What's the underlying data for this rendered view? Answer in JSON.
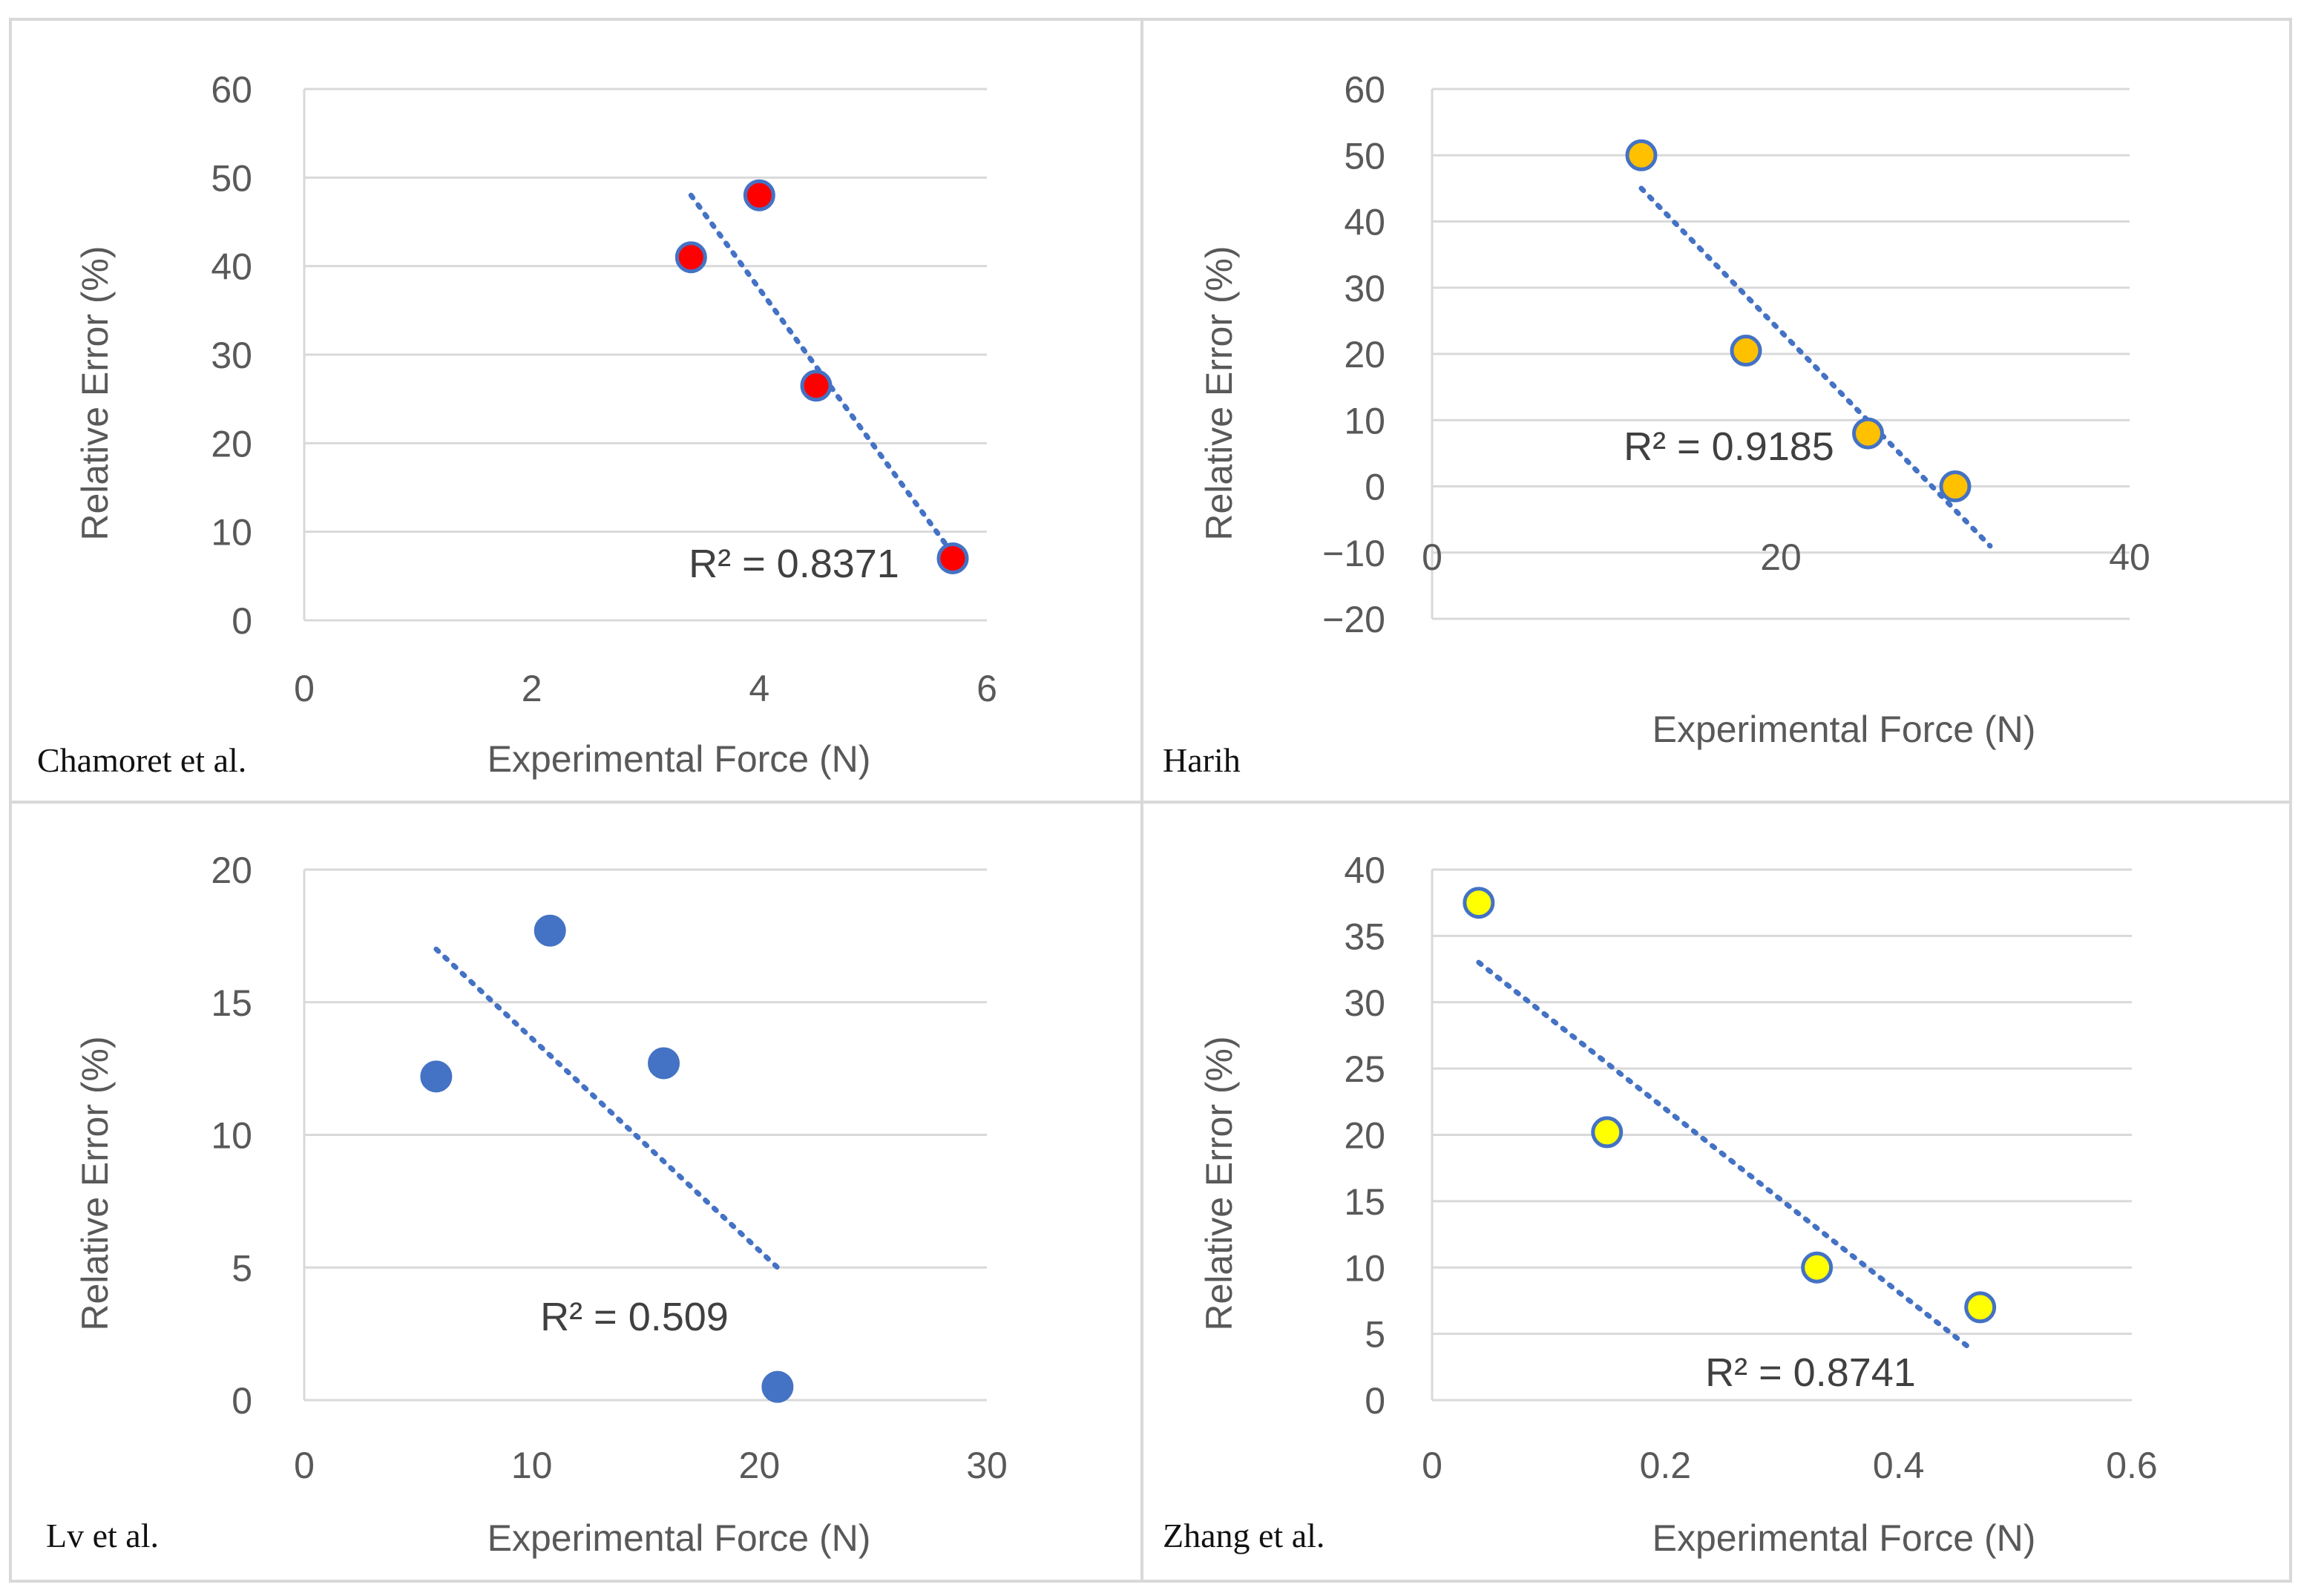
{
  "chart_data": [
    {
      "type": "scatter",
      "label": "Chamoret et al.",
      "xlabel": "Experimental Force (N)",
      "ylabel": "Relative Error (%)",
      "xlim": [
        0,
        6
      ],
      "ylim": [
        0,
        60
      ],
      "xticks": [
        0,
        2,
        4,
        6
      ],
      "yticks": [
        0,
        10,
        20,
        30,
        40,
        50,
        60
      ],
      "grid": true,
      "marker_color": "#ff0000",
      "marker_edge": "#4472c4",
      "x": [
        3.4,
        4.0,
        4.5,
        5.7
      ],
      "y": [
        41,
        48,
        26.5,
        7
      ],
      "trendline": {
        "x": [
          3.4,
          5.7
        ],
        "y": [
          48,
          7.5
        ]
      },
      "r2_label": "R² = 0.8371"
    },
    {
      "type": "scatter",
      "label": "Harih",
      "xlabel": "Experimental Force (N)",
      "ylabel": "Relative Error (%)",
      "xlim": [
        0,
        40
      ],
      "ylim": [
        -20,
        60
      ],
      "xticks": [
        0,
        20,
        40
      ],
      "yticks": [
        -20,
        -10,
        0,
        10,
        20,
        30,
        40,
        50,
        60
      ],
      "grid": true,
      "marker_color": "#ffc000",
      "marker_edge": "#4472c4",
      "x": [
        12,
        18,
        25,
        30
      ],
      "y": [
        50,
        20.5,
        8,
        0
      ],
      "trendline": {
        "x": [
          12,
          32
        ],
        "y": [
          45,
          -9
        ]
      },
      "r2_label": "R² = 0.9185"
    },
    {
      "type": "scatter",
      "label": "Lv et al.",
      "xlabel": "Experimental Force (N)",
      "ylabel": "Relative Error (%)",
      "xlim": [
        0,
        30
      ],
      "ylim": [
        0,
        20
      ],
      "xticks": [
        0,
        10,
        20,
        30
      ],
      "yticks": [
        0,
        5,
        10,
        15,
        20
      ],
      "grid": true,
      "marker_color": "#4472c4",
      "marker_edge": "#4472c4",
      "x": [
        5.8,
        10.8,
        15.8,
        20.8
      ],
      "y": [
        12.2,
        17.7,
        12.7,
        0.5
      ],
      "trendline": {
        "x": [
          5.8,
          20.8
        ],
        "y": [
          17,
          5
        ]
      },
      "r2_label": "R² = 0.509"
    },
    {
      "type": "scatter",
      "label": "Zhang et al.",
      "xlabel": "Experimental Force (N)",
      "ylabel": "Relative Error (%)",
      "xlim": [
        0,
        0.6
      ],
      "ylim": [
        0,
        40
      ],
      "xticks": [
        0,
        0.2,
        0.4,
        0.6
      ],
      "ytick_labels": [
        "0",
        "5",
        "10",
        "15",
        "20",
        "25",
        "30",
        "35",
        "40"
      ],
      "xtick_labels": [
        "0",
        "0.2",
        "0.4",
        "0.6"
      ],
      "yticks": [
        0,
        5,
        10,
        15,
        20,
        25,
        30,
        35,
        40
      ],
      "grid": true,
      "marker_color": "#ffff00",
      "marker_edge": "#4472c4",
      "x": [
        0.04,
        0.15,
        0.33,
        0.47
      ],
      "y": [
        37.5,
        20.2,
        10,
        7
      ],
      "trendline": {
        "x": [
          0.04,
          0.46
        ],
        "y": [
          33,
          4
        ]
      },
      "r2_label": "R² = 0.8741"
    }
  ]
}
